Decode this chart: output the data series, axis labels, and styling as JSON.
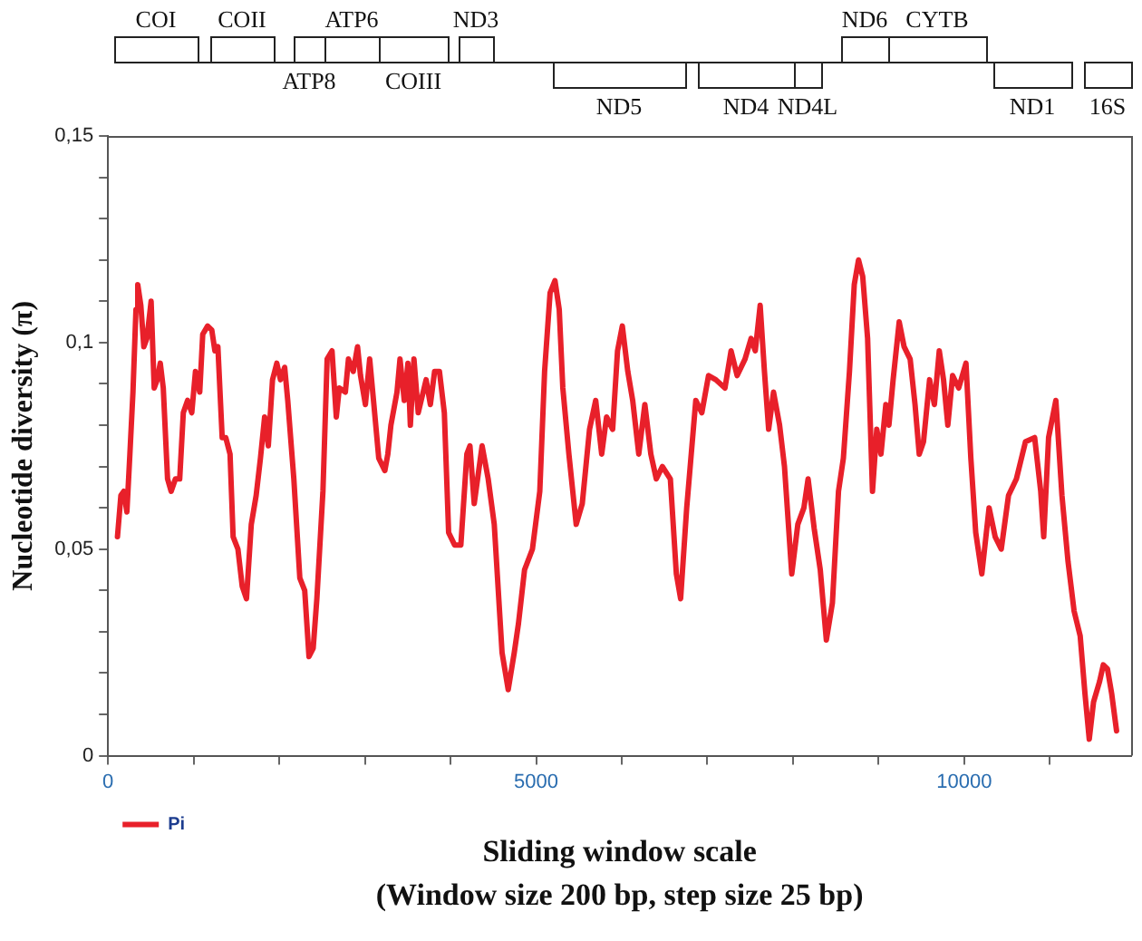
{
  "chart_data": {
    "type": "line",
    "xlabel": "Sliding window scale",
    "ylabel": "Nucleotide diversity (π)",
    "annotations": [
      "COI",
      "COII",
      "ATP8",
      "ATP6",
      "COIII",
      "ND3",
      "ND5",
      "ND4",
      "ND4L",
      "ND6",
      "CYTB",
      "ND1",
      "16S",
      "(Window size 200 bp, step size 25 bp)"
    ],
    "xlim": [
      0,
      11950
    ],
    "ylim": [
      0,
      0.15
    ],
    "xticks": [
      0,
      {
        "value": 1000,
        "label": null
      },
      {
        "value": 2000,
        "label": null
      },
      {
        "value": 3000,
        "label": null
      },
      {
        "value": 4000,
        "label": null
      },
      5000,
      {
        "value": 6000,
        "label": null
      },
      {
        "value": 7000,
        "label": null
      },
      {
        "value": 8000,
        "label": null
      },
      {
        "value": 9000,
        "label": null
      },
      10000,
      {
        "value": 11000,
        "label": null
      }
    ],
    "yticks": [
      0,
      {
        "value": 0.01,
        "label": null
      },
      {
        "value": 0.02,
        "label": null
      },
      {
        "value": 0.03,
        "label": null
      },
      {
        "value": 0.04,
        "label": null
      },
      {
        "value": 0.05,
        "label": "0,05"
      },
      {
        "value": 0.06,
        "label": null
      },
      {
        "value": 0.07,
        "label": null
      },
      {
        "value": 0.08,
        "label": null
      },
      {
        "value": 0.09,
        "label": null
      },
      {
        "value": 0.1,
        "label": "0,1"
      },
      {
        "value": 0.11,
        "label": null
      },
      {
        "value": 0.12,
        "label": null
      },
      {
        "value": 0.13,
        "label": null
      },
      {
        "value": 0.14,
        "label": null
      },
      {
        "value": 0.15,
        "label": "0,15"
      }
    ],
    "grid": false,
    "legend": "bottom left",
    "marker": "none",
    "line_style": "solid",
    "series": [
      {
        "name": "Pi",
        "color": "#e8202a",
        "x": [
          110,
          150,
          184,
          220,
          255,
          291,
          326,
          347,
          383,
          418,
          454,
          503,
          539,
          574,
          610,
          645,
          695,
          737,
          787,
          837,
          879,
          929,
          978,
          1021,
          1071,
          1106,
          1163,
          1212,
          1248,
          1283,
          1333,
          1375,
          1425,
          1461,
          1517,
          1567,
          1617,
          1673,
          1730,
          1780,
          1829,
          1872,
          1921,
          1971,
          2014,
          2063,
          2099,
          2170,
          2240,
          2297,
          2347,
          2396,
          2439,
          2510,
          2559,
          2616,
          2666,
          2701,
          2772,
          2808,
          2864,
          2914,
          2949,
          3006,
          3056,
          3105,
          3162,
          3233,
          3268,
          3304,
          3375,
          3410,
          3460,
          3503,
          3531,
          3573,
          3623,
          3715,
          3765,
          3814,
          3871,
          3928,
          3978,
          4048,
          4121,
          4191,
          4227,
          4277,
          4369,
          4440,
          4511,
          4602,
          4674,
          4745,
          4794,
          4865,
          4957,
          5043,
          5099,
          5163,
          5220,
          5270,
          5312,
          5383,
          5468,
          5539,
          5624,
          5696,
          5766,
          5823,
          5894,
          5951,
          6007,
          6071,
          6128,
          6199,
          6270,
          6340,
          6404,
          6475,
          6568,
          6638,
          6688,
          6759,
          6865,
          6936,
          7014,
          7099,
          7206,
          7277,
          7348,
          7440,
          7511,
          7560,
          7617,
          7667,
          7716,
          7773,
          7844,
          7901,
          7986,
          8057,
          8128,
          8177,
          8248,
          8319,
          8390,
          8461,
          8532,
          8589,
          8660,
          8716,
          8766,
          8815,
          8872,
          8929,
          8979,
          9028,
          9085,
          9121,
          9170,
          9241,
          9298,
          9369,
          9426,
          9475,
          9525,
          9596,
          9652,
          9709,
          9759,
          9809,
          9865,
          9936,
          10021,
          10078,
          10135,
          10206,
          10291,
          10362,
          10433,
          10518,
          10610,
          10716,
          10823,
          10894,
          10929,
          10986,
          11071,
          11142,
          11213,
          11284,
          11355,
          11411,
          11461,
          11511,
          11582,
          11625,
          11674,
          11723,
          11780
        ],
        "values": [
          0.053,
          0.063,
          0.064,
          0.059,
          0.073,
          0.088,
          0.108,
          0.114,
          0.109,
          0.099,
          0.101,
          0.11,
          0.089,
          0.091,
          0.095,
          0.089,
          0.067,
          0.064,
          0.067,
          0.067,
          0.083,
          0.086,
          0.083,
          0.093,
          0.088,
          0.102,
          0.104,
          0.103,
          0.098,
          0.099,
          0.077,
          0.077,
          0.073,
          0.053,
          0.05,
          0.041,
          0.038,
          0.056,
          0.063,
          0.072,
          0.082,
          0.075,
          0.091,
          0.095,
          0.091,
          0.094,
          0.086,
          0.067,
          0.043,
          0.04,
          0.024,
          0.026,
          0.038,
          0.064,
          0.096,
          0.098,
          0.082,
          0.089,
          0.088,
          0.096,
          0.093,
          0.099,
          0.092,
          0.085,
          0.096,
          0.085,
          0.072,
          0.069,
          0.073,
          0.08,
          0.088,
          0.096,
          0.086,
          0.095,
          0.08,
          0.096,
          0.083,
          0.091,
          0.085,
          0.093,
          0.093,
          0.083,
          0.054,
          0.051,
          0.051,
          0.073,
          0.075,
          0.061,
          0.075,
          0.067,
          0.056,
          0.025,
          0.016,
          0.025,
          0.032,
          0.045,
          0.05,
          0.064,
          0.093,
          0.112,
          0.115,
          0.108,
          0.089,
          0.073,
          0.056,
          0.061,
          0.079,
          0.086,
          0.073,
          0.082,
          0.079,
          0.098,
          0.104,
          0.093,
          0.086,
          0.073,
          0.085,
          0.073,
          0.067,
          0.07,
          0.067,
          0.044,
          0.038,
          0.06,
          0.086,
          0.083,
          0.092,
          0.091,
          0.089,
          0.098,
          0.092,
          0.096,
          0.101,
          0.098,
          0.109,
          0.093,
          0.079,
          0.088,
          0.08,
          0.07,
          0.044,
          0.056,
          0.06,
          0.067,
          0.055,
          0.045,
          0.028,
          0.037,
          0.064,
          0.072,
          0.093,
          0.114,
          0.12,
          0.116,
          0.101,
          0.064,
          0.079,
          0.073,
          0.085,
          0.08,
          0.091,
          0.105,
          0.099,
          0.096,
          0.085,
          0.073,
          0.076,
          0.091,
          0.085,
          0.098,
          0.091,
          0.08,
          0.092,
          0.089,
          0.095,
          0.072,
          0.054,
          0.044,
          0.06,
          0.053,
          0.05,
          0.063,
          0.067,
          0.076,
          0.077,
          0.064,
          0.053,
          0.077,
          0.086,
          0.063,
          0.047,
          0.035,
          0.029,
          0.015,
          0.004,
          0.013,
          0.018,
          0.022,
          0.021,
          0.015,
          0.006
        ]
      }
    ]
  }
}
